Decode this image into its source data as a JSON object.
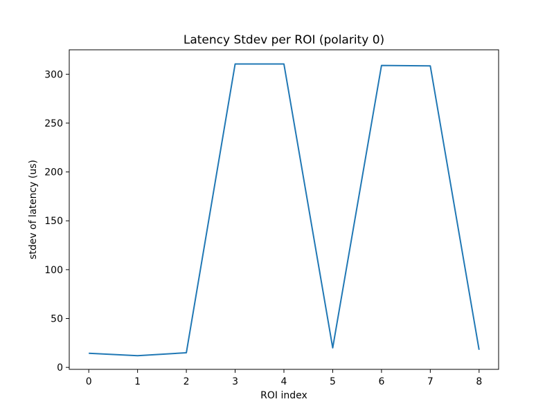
{
  "chart_data": {
    "type": "line",
    "title": "Latency Stdev per ROI (polarity 0)",
    "xlabel": "ROI index",
    "ylabel": "stdev of latency (us)",
    "xlim": [
      -0.4,
      8.4
    ],
    "ylim": [
      -2,
      325
    ],
    "x_ticks": [
      0,
      1,
      2,
      3,
      4,
      5,
      6,
      7,
      8
    ],
    "y_ticks": [
      0,
      50,
      100,
      150,
      200,
      250,
      300
    ],
    "grid": false,
    "series": [
      {
        "color": "#1f77b4",
        "x": [
          0,
          1,
          2,
          3,
          4,
          5,
          6,
          7,
          8
        ],
        "y": [
          14.5,
          12,
          15,
          310.5,
          310.5,
          20,
          309,
          308.5,
          18
        ]
      }
    ]
  }
}
